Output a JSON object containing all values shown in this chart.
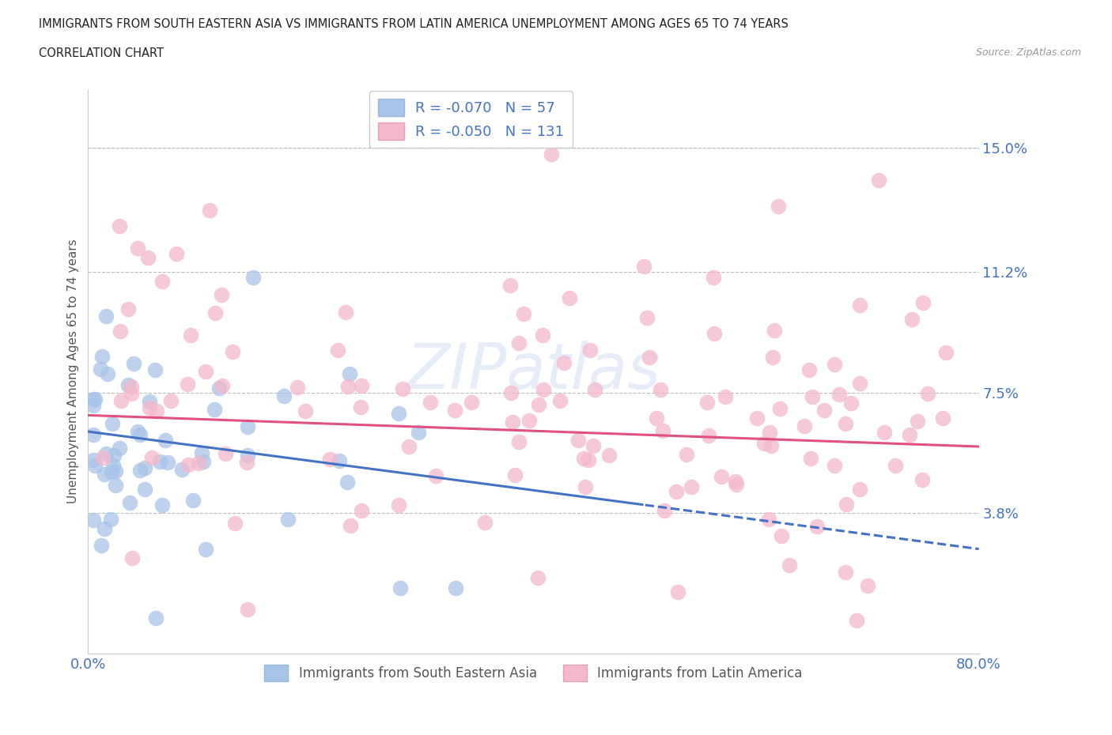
{
  "title_line1": "IMMIGRANTS FROM SOUTH EASTERN ASIA VS IMMIGRANTS FROM LATIN AMERICA UNEMPLOYMENT AMONG AGES 65 TO 74 YEARS",
  "title_line2": "CORRELATION CHART",
  "source_text": "Source: ZipAtlas.com",
  "ylabel": "Unemployment Among Ages 65 to 74 years",
  "xlim": [
    0.0,
    0.8
  ],
  "ylim": [
    -0.005,
    0.168
  ],
  "yticks": [
    0.038,
    0.075,
    0.112,
    0.15
  ],
  "ytick_labels": [
    "3.8%",
    "7.5%",
    "11.2%",
    "15.0%"
  ],
  "xticks": [
    0.0,
    0.2,
    0.4,
    0.6,
    0.8
  ],
  "xtick_labels": [
    "0.0%",
    "",
    "",
    "",
    "80.0%"
  ],
  "blue_color": "#a8c4e8",
  "pink_color": "#f4b8cc",
  "blue_line_color": "#4472c4",
  "pink_line_color": "#e05080",
  "R_blue": -0.07,
  "N_blue": 57,
  "R_pink": -0.05,
  "N_pink": 131,
  "legend_label_blue": "Immigrants from South Eastern Asia",
  "legend_label_pink": "Immigrants from Latin America",
  "watermark": "ZIPatlas",
  "background_color": "#ffffff",
  "grid_color": "#bbbbbb",
  "axis_label_color": "#4472c4",
  "blue_intercept": 0.063,
  "blue_slope": -0.045,
  "pink_intercept": 0.068,
  "pink_slope": -0.012
}
